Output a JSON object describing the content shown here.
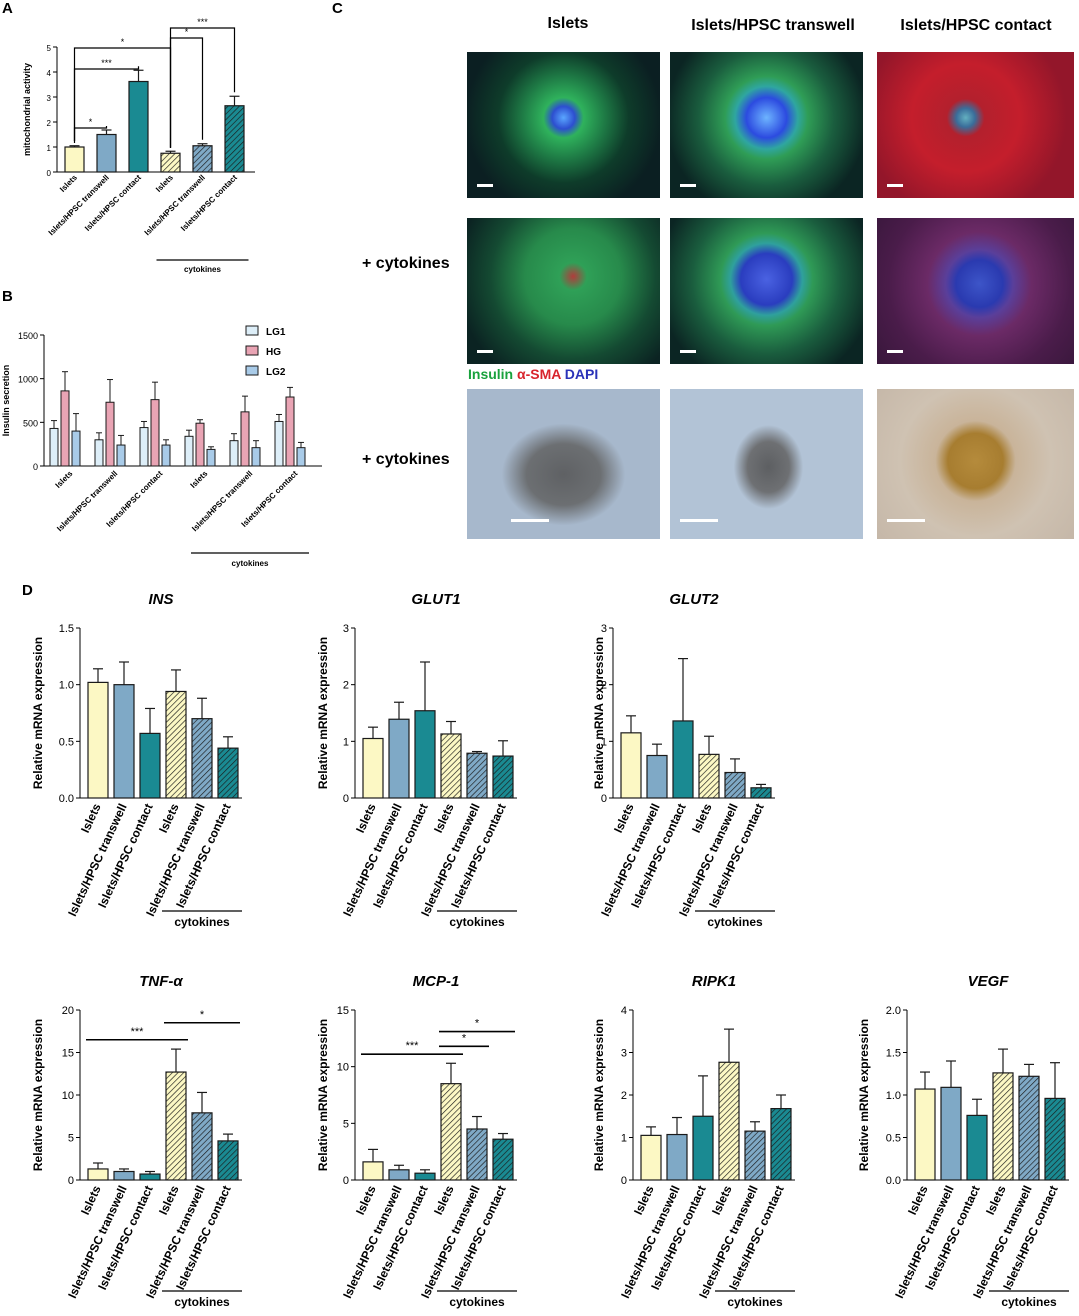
{
  "panels": {
    "A": "A",
    "B": "B",
    "C": "C",
    "D": "D"
  },
  "colors": {
    "islets": "#fcf8c4",
    "transwell": "#7fa9c6",
    "contact": "#1a8a92",
    "ins": "#19a23d",
    "sma": "#d8242c",
    "dapi": "#2a32b8",
    "lg1": "#ddeef8",
    "hg": "#e9a4b4",
    "lg2": "#a9cbe8"
  },
  "panel_c": {
    "columns": [
      "Islets",
      "Islets/HPSC transwell",
      "Islets/HPSC contact"
    ],
    "rows": [
      "+ cytokines",
      "+ cytokines"
    ],
    "stains": {
      "insulin": "Insulin",
      "sma": "α-SMA",
      "dapi": "DAPI"
    }
  },
  "chart_data": [
    {
      "id": "A",
      "type": "bar",
      "title": "",
      "ylabel": "mitochondrial activity",
      "ylim": [
        0,
        5
      ],
      "yticks": [
        0,
        1,
        2,
        3,
        4,
        5
      ],
      "categories": [
        "Islets",
        "Islets/HPSC transwell",
        "Islets/HPSC contact",
        "Islets",
        "Islets/HPSC transwell",
        "Islets/HPSC contact"
      ],
      "group_label": "cytokines",
      "values": [
        1.0,
        1.5,
        3.62,
        0.75,
        1.05,
        2.65
      ],
      "errors": [
        0.05,
        0.18,
        0.45,
        0.08,
        0.08,
        0.38
      ],
      "significance": [
        {
          "from": 0,
          "to": 1,
          "label": "*"
        },
        {
          "from": 0,
          "to": 2,
          "label": "***"
        },
        {
          "from": 0,
          "to": 3,
          "label": "*"
        },
        {
          "from": 3,
          "to": 4,
          "label": "*"
        },
        {
          "from": 3,
          "to": 5,
          "label": "***"
        }
      ]
    },
    {
      "id": "B",
      "type": "bar",
      "title": "",
      "ylabel": "Insulin secretion",
      "ylim": [
        0,
        1500
      ],
      "yticks": [
        0,
        500,
        1000,
        1500
      ],
      "categories": [
        "Islets",
        "Islets/HPSC transwell",
        "Islets/HPSC contact",
        "Islets",
        "Islets/HPSC transwell",
        "Islets/HPSC contact"
      ],
      "group_label": "cytokines",
      "legend_position": "top-right",
      "series": [
        {
          "name": "LG1",
          "values": [
            430,
            300,
            440,
            340,
            290,
            510
          ],
          "errors": [
            90,
            80,
            70,
            70,
            80,
            80
          ]
        },
        {
          "name": "HG",
          "values": [
            860,
            730,
            760,
            490,
            620,
            790
          ],
          "errors": [
            220,
            260,
            200,
            40,
            180,
            110
          ]
        },
        {
          "name": "LG2",
          "values": [
            400,
            240,
            240,
            190,
            210,
            210
          ],
          "errors": [
            200,
            110,
            60,
            30,
            80,
            60
          ]
        }
      ]
    },
    {
      "id": "INS",
      "type": "bar",
      "title": "INS",
      "ylabel": "Relative mRNA expression",
      "ylim": [
        0,
        1.5
      ],
      "yticks": [
        "0.0",
        "0.5",
        "1.0",
        "1.5"
      ],
      "categories": [
        "Islets",
        "Islets/HPSC transwell",
        "Islets/HPSC contact",
        "Islets",
        "Islets/HPSC transwell",
        "Islets/HPSC contact"
      ],
      "group_label": "cytokines",
      "values": [
        1.02,
        1.0,
        0.57,
        0.94,
        0.7,
        0.44
      ],
      "errors": [
        0.12,
        0.2,
        0.22,
        0.19,
        0.18,
        0.1
      ],
      "significance": []
    },
    {
      "id": "GLUT1",
      "type": "bar",
      "title": "GLUT1",
      "ylabel": "Relative mRNA expression",
      "ylim": [
        0,
        3
      ],
      "yticks": [
        "0",
        "1",
        "2",
        "3"
      ],
      "categories": [
        "Islets",
        "Islets/HPSC transwell",
        "Islets/HPSC contact",
        "Islets",
        "Islets/HPSC transwell",
        "Islets/HPSC contact"
      ],
      "group_label": "cytokines",
      "values": [
        1.05,
        1.39,
        1.54,
        1.13,
        0.79,
        0.74
      ],
      "errors": [
        0.2,
        0.3,
        0.86,
        0.22,
        0.03,
        0.27
      ],
      "significance": []
    },
    {
      "id": "GLUT2",
      "type": "bar",
      "title": "GLUT2",
      "ylabel": "Relative mRNA expression",
      "ylim": [
        0,
        3
      ],
      "yticks": [
        "0",
        "1",
        "2",
        "3"
      ],
      "categories": [
        "Islets",
        "Islets/HPSC transwell",
        "Islets/HPSC contact",
        "Islets",
        "Islets/HPSC transwell",
        "Islets/HPSC contact"
      ],
      "group_label": "cytokines",
      "values": [
        1.15,
        0.75,
        1.36,
        0.77,
        0.45,
        0.18
      ],
      "errors": [
        0.3,
        0.2,
        1.1,
        0.32,
        0.24,
        0.06
      ],
      "significance": []
    },
    {
      "id": "TNF",
      "type": "bar",
      "title": "TNF-α",
      "ylabel": "Relative mRNA expression",
      "ylim": [
        0,
        20
      ],
      "yticks": [
        "0",
        "5",
        "10",
        "15",
        "20"
      ],
      "categories": [
        "Islets",
        "Islets/HPSC transwell",
        "Islets/HPSC contact",
        "Islets",
        "Islets/HPSC transwell",
        "Islets/HPSC contact"
      ],
      "group_label": "cytokines",
      "values": [
        1.3,
        1.0,
        0.7,
        12.7,
        7.9,
        4.6
      ],
      "errors": [
        0.7,
        0.3,
        0.3,
        2.7,
        2.4,
        0.8
      ],
      "significance": [
        {
          "from": 0,
          "to": 3,
          "label": "***",
          "y": 16.5
        },
        {
          "from": 3,
          "to": 5,
          "label": "*",
          "y": 18.5
        }
      ]
    },
    {
      "id": "MCP1",
      "type": "bar",
      "title": "MCP-1",
      "ylabel": "Relative mRNA expression",
      "ylim": [
        0,
        15
      ],
      "yticks": [
        "0",
        "5",
        "10",
        "15"
      ],
      "categories": [
        "Islets",
        "Islets/HPSC transwell",
        "Islets/HPSC contact",
        "Islets",
        "Islets/HPSC transwell",
        "Islets/HPSC contact"
      ],
      "group_label": "cytokines",
      "values": [
        1.6,
        0.9,
        0.6,
        8.5,
        4.5,
        3.6
      ],
      "errors": [
        1.1,
        0.4,
        0.3,
        1.8,
        1.1,
        0.5
      ],
      "significance": [
        {
          "from": 0,
          "to": 3,
          "label": "***",
          "y": 11.1
        },
        {
          "from": 3,
          "to": 4,
          "label": "*",
          "y": 11.8
        },
        {
          "from": 3,
          "to": 5,
          "label": "*",
          "y": 13.1
        }
      ]
    },
    {
      "id": "RIPK1",
      "type": "bar",
      "title": "RIPK1",
      "ylabel": "Relative mRNA expression",
      "ylim": [
        0,
        4
      ],
      "yticks": [
        "0",
        "1",
        "2",
        "3",
        "4"
      ],
      "categories": [
        "Islets",
        "Islets/HPSC transwell",
        "Islets/HPSC contact",
        "Islets",
        "Islets/HPSC transwell",
        "Islets/HPSC contact"
      ],
      "group_label": "cytokines",
      "values": [
        1.05,
        1.07,
        1.5,
        2.77,
        1.15,
        1.68
      ],
      "errors": [
        0.2,
        0.4,
        0.95,
        0.78,
        0.22,
        0.32
      ],
      "significance": []
    },
    {
      "id": "VEGF",
      "type": "bar",
      "title": "VEGF",
      "ylabel": "Relative mRNA expression",
      "ylim": [
        0,
        2
      ],
      "yticks": [
        "0.0",
        "0.5",
        "1.0",
        "1.5",
        "2.0"
      ],
      "categories": [
        "Islets",
        "Islets/HPSC transwell",
        "Islets/HPSC contact",
        "Islets",
        "Islets/HPSC transwell",
        "Islets/HPSC contact"
      ],
      "group_label": "cytokines",
      "values": [
        1.07,
        1.09,
        0.76,
        1.26,
        1.22,
        0.96
      ],
      "errors": [
        0.2,
        0.31,
        0.19,
        0.28,
        0.14,
        0.42
      ],
      "significance": []
    }
  ]
}
